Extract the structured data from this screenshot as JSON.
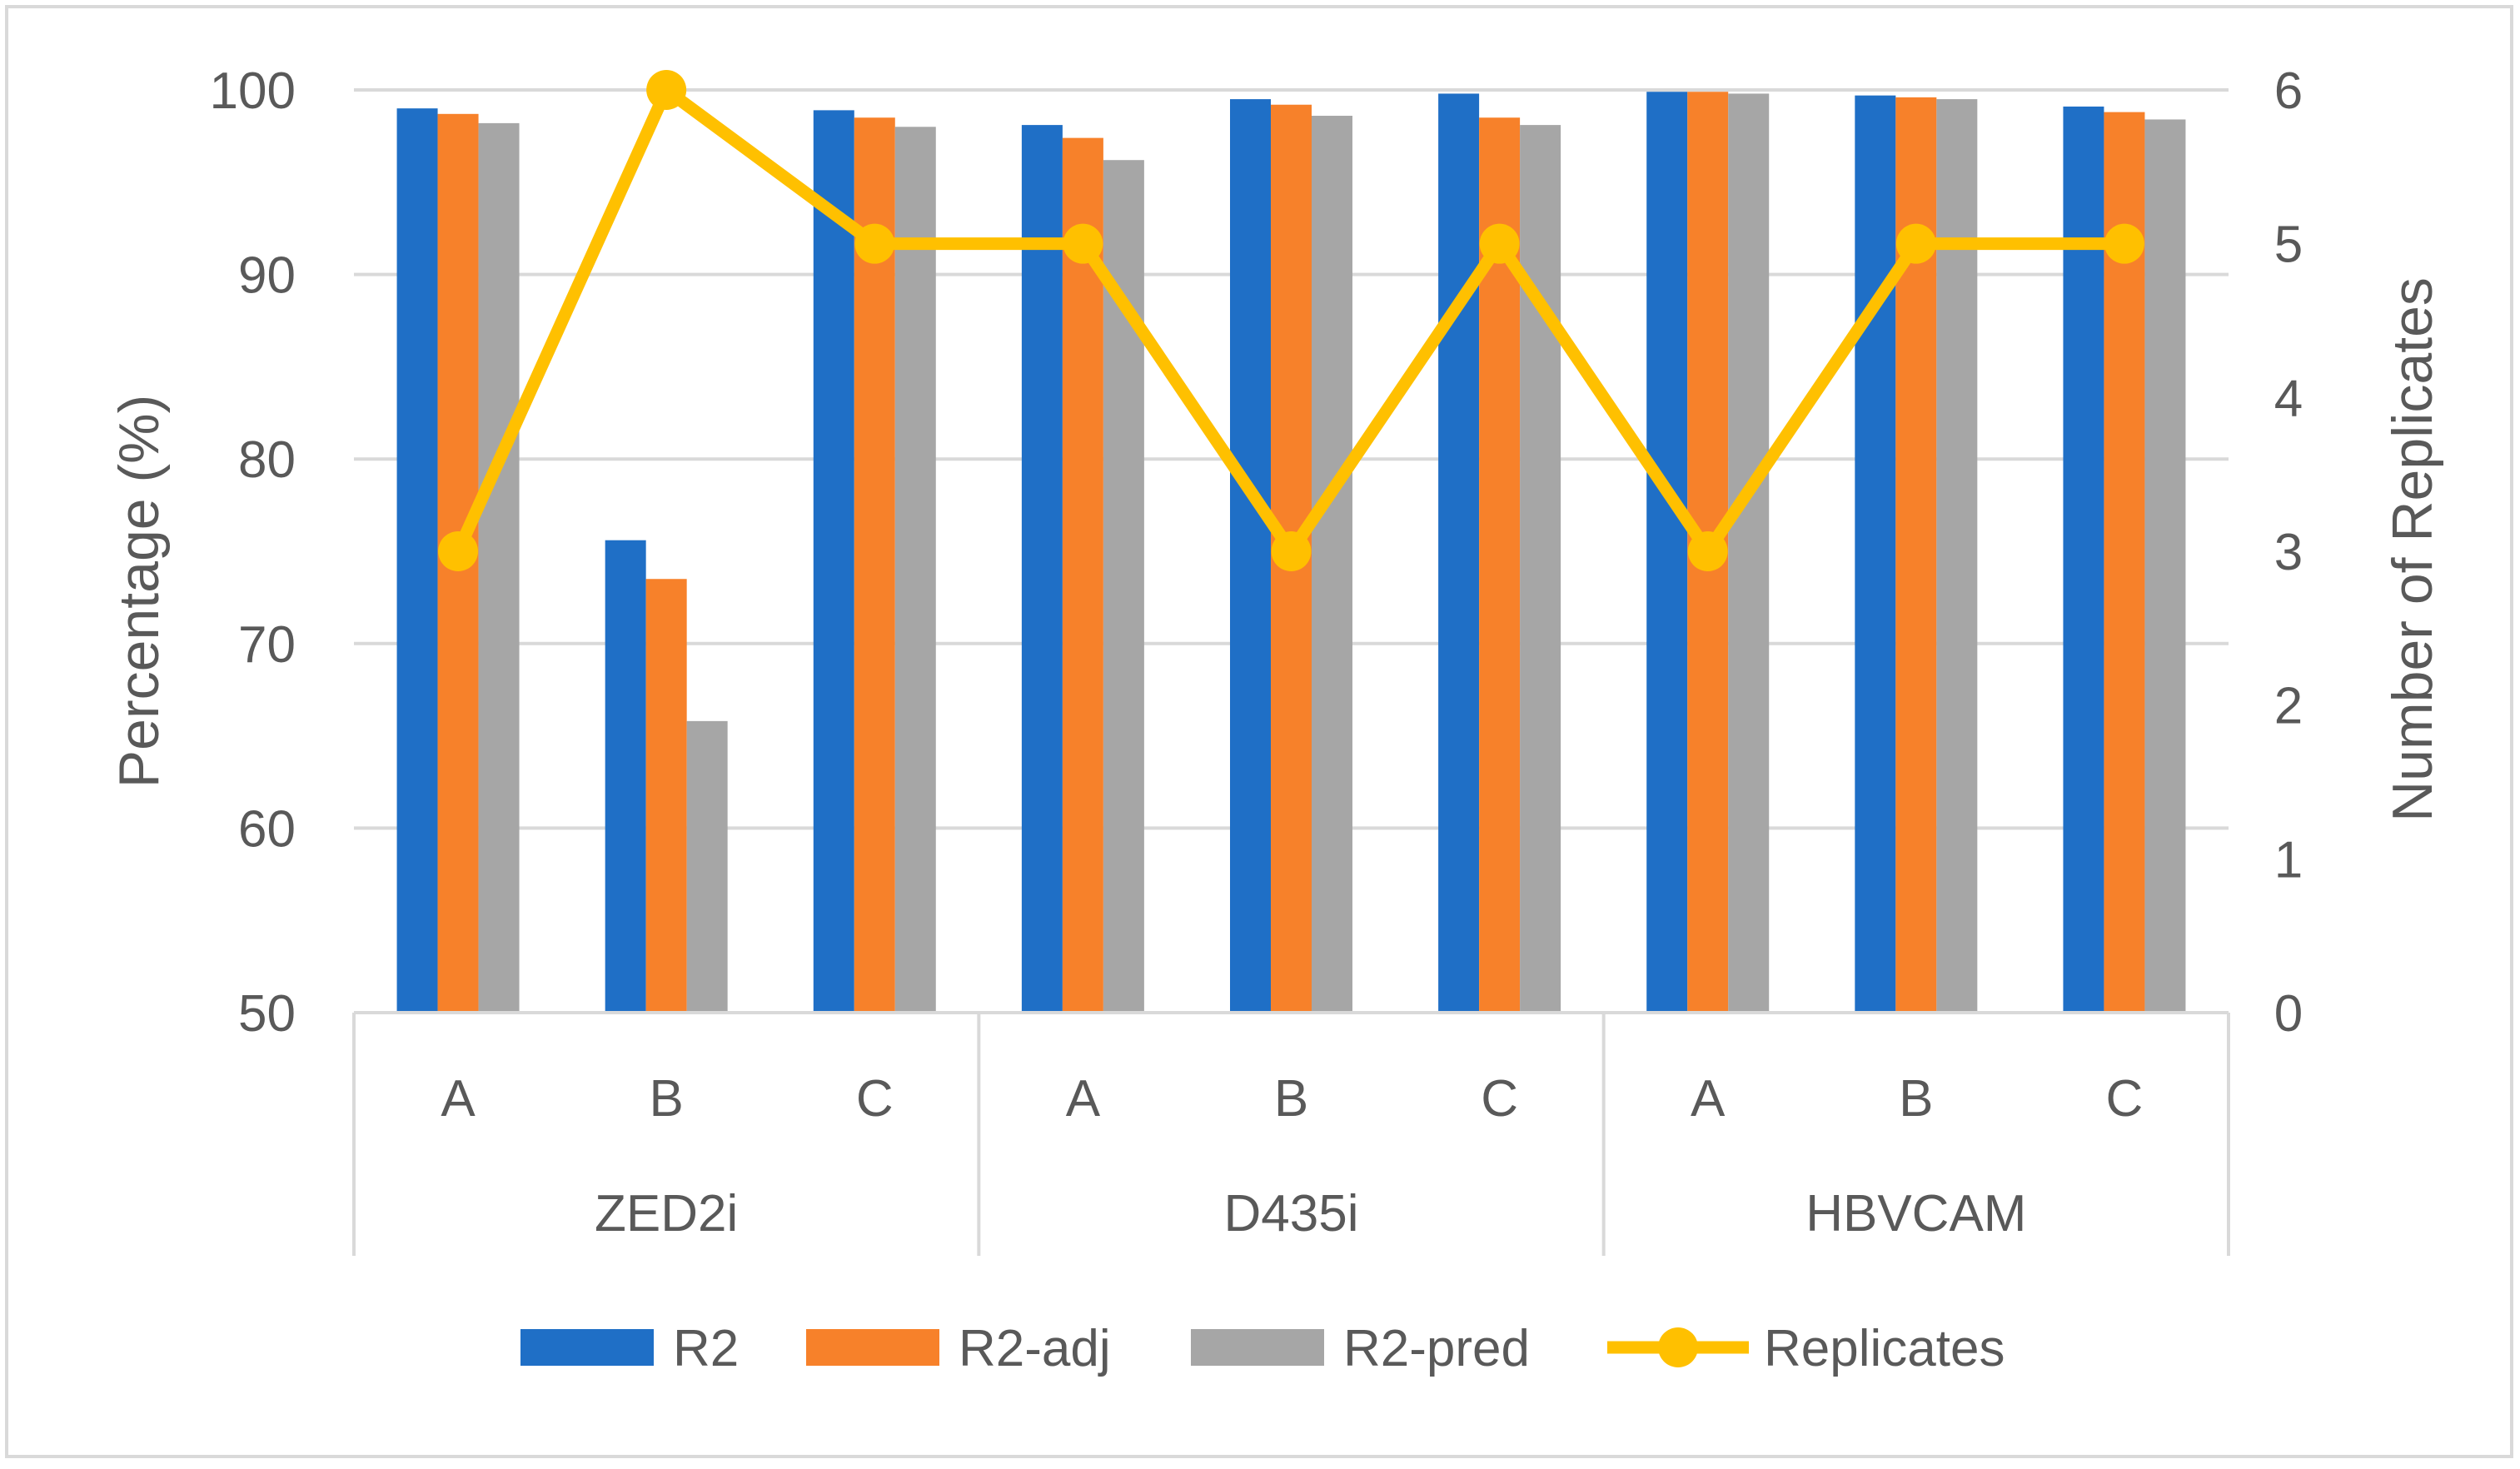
{
  "chart_data": {
    "type": "bar",
    "title": "",
    "groups": [
      {
        "name": "ZED2i",
        "categories": [
          "A",
          "B",
          "C"
        ]
      },
      {
        "name": "D435i",
        "categories": [
          "A",
          "B",
          "C"
        ]
      },
      {
        "name": "HBVCAM",
        "categories": [
          "A",
          "B",
          "C"
        ]
      }
    ],
    "categories": [
      "A",
      "B",
      "C",
      "A",
      "B",
      "C",
      "A",
      "B",
      "C"
    ],
    "series": [
      {
        "name": "R2",
        "type": "bar",
        "axis": "left",
        "color": "#1F6FC6",
        "values": [
          99.0,
          75.6,
          98.9,
          98.1,
          99.5,
          99.8,
          99.9,
          99.7,
          99.1
        ]
      },
      {
        "name": "R2-adj",
        "type": "bar",
        "axis": "left",
        "color": "#F7812A",
        "values": [
          98.7,
          73.5,
          98.5,
          97.4,
          99.2,
          98.5,
          99.9,
          99.6,
          98.8
        ]
      },
      {
        "name": "R2-pred",
        "type": "bar",
        "axis": "left",
        "color": "#A6A6A6",
        "values": [
          98.2,
          65.8,
          98.0,
          96.2,
          98.6,
          98.1,
          99.8,
          99.5,
          98.4
        ]
      },
      {
        "name": "Replicates",
        "type": "line",
        "axis": "right",
        "color": "#FFC000",
        "values": [
          3,
          6,
          5,
          5,
          3,
          5,
          3,
          5,
          5
        ]
      }
    ],
    "ylabel": "Percentage (%)",
    "ylim": [
      50,
      100
    ],
    "yticks": [
      "50",
      "60",
      "70",
      "80",
      "90",
      "100"
    ],
    "y2label": "Number of Replicates",
    "y2lim": [
      0,
      6
    ],
    "y2ticks": [
      "0",
      "1",
      "2",
      "3",
      "4",
      "5",
      "6"
    ],
    "grid": true,
    "legend_position": "bottom"
  }
}
